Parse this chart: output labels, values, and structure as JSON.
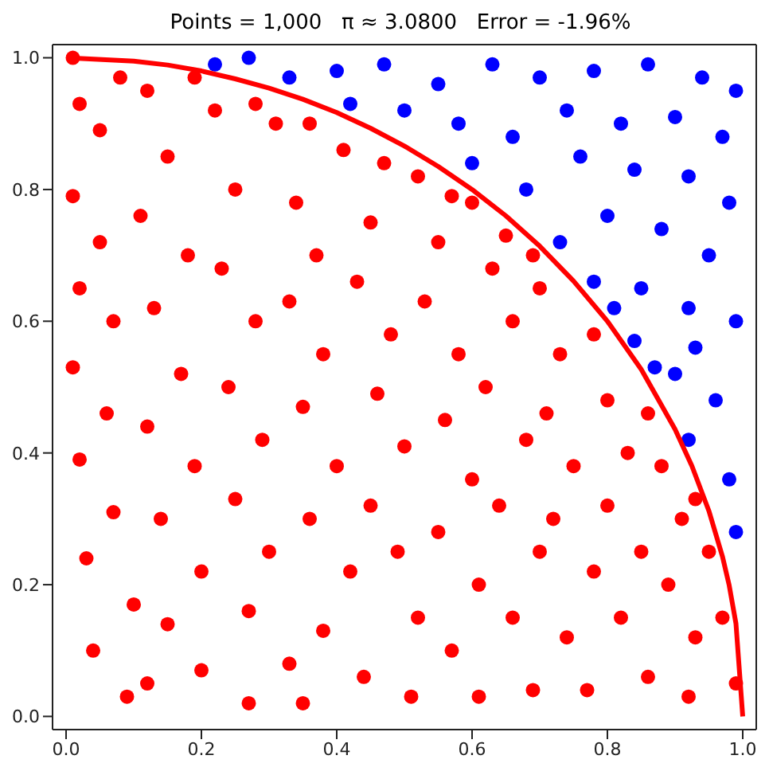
{
  "chart_data": {
    "type": "scatter",
    "title": "Points = 1,000   π ≈ 3.0800   Error = -1.96%",
    "xlim": [
      -0.02,
      1.02
    ],
    "ylim": [
      -0.02,
      1.02
    ],
    "xticks": [
      {
        "value": 0,
        "label": "0.0"
      },
      {
        "value": 0.2,
        "label": "0.2"
      },
      {
        "value": 0.4,
        "label": "0.4"
      },
      {
        "value": 0.6,
        "label": "0.6"
      },
      {
        "value": 0.8,
        "label": "0.8"
      },
      {
        "value": 1,
        "label": "1.0"
      }
    ],
    "yticks": [
      {
        "value": 0,
        "label": "0.0"
      },
      {
        "value": 0.2,
        "label": "0.2"
      },
      {
        "value": 0.4,
        "label": "0.4"
      },
      {
        "value": 0.6,
        "label": "0.6"
      },
      {
        "value": 0.8,
        "label": "0.8"
      },
      {
        "value": 1,
        "label": "1.0"
      }
    ],
    "marker": "circle",
    "series": [
      {
        "color": "#ff0000",
        "x": [
          0.01,
          0.02,
          0.05,
          0.01,
          0.05,
          0.02,
          0.07,
          0.01,
          0.06,
          0.02,
          0.07,
          0.03,
          0.1,
          0.04,
          0.09,
          0.12,
          0.15,
          0.11,
          0.18,
          0.13,
          0.17,
          0.12,
          0.19,
          0.14,
          0.2,
          0.15,
          0.12,
          0.2,
          0.22,
          0.25,
          0.23,
          0.28,
          0.24,
          0.29,
          0.25,
          0.3,
          0.27,
          0.33,
          0.27,
          0.35,
          0.31,
          0.34,
          0.37,
          0.33,
          0.38,
          0.35,
          0.4,
          0.36,
          0.42,
          0.38,
          0.44,
          0.41,
          0.45,
          0.43,
          0.48,
          0.46,
          0.5,
          0.45,
          0.49,
          0.52,
          0.51,
          0.52,
          0.55,
          0.53,
          0.58,
          0.56,
          0.6,
          0.55,
          0.61,
          0.57,
          0.61,
          0.6,
          0.63,
          0.66,
          0.62,
          0.68,
          0.64,
          0.7,
          0.66,
          0.69,
          0.7,
          0.73,
          0.71,
          0.75,
          0.72,
          0.78,
          0.74,
          0.77,
          0.78,
          0.8,
          0.83,
          0.8,
          0.85,
          0.82,
          0.86,
          0.86,
          0.88,
          0.91,
          0.89,
          0.93,
          0.92,
          0.93,
          0.95,
          0.97,
          0.99,
          0.08,
          0.19,
          0.28,
          0.36,
          0.47,
          0.57,
          0.65,
          0.69
        ],
        "values": [
          1.0,
          0.93,
          0.89,
          0.79,
          0.72,
          0.65,
          0.6,
          0.53,
          0.46,
          0.39,
          0.31,
          0.24,
          0.17,
          0.1,
          0.03,
          0.95,
          0.85,
          0.76,
          0.7,
          0.62,
          0.52,
          0.44,
          0.38,
          0.3,
          0.22,
          0.14,
          0.05,
          0.07,
          0.92,
          0.8,
          0.68,
          0.6,
          0.5,
          0.42,
          0.33,
          0.25,
          0.16,
          0.08,
          0.02,
          0.02,
          0.9,
          0.78,
          0.7,
          0.63,
          0.55,
          0.47,
          0.38,
          0.3,
          0.22,
          0.13,
          0.06,
          0.86,
          0.75,
          0.66,
          0.58,
          0.49,
          0.41,
          0.32,
          0.25,
          0.15,
          0.03,
          0.82,
          0.72,
          0.63,
          0.55,
          0.45,
          0.36,
          0.28,
          0.2,
          0.1,
          0.03,
          0.78,
          0.68,
          0.6,
          0.5,
          0.42,
          0.32,
          0.25,
          0.15,
          0.04,
          0.65,
          0.55,
          0.46,
          0.38,
          0.3,
          0.22,
          0.12,
          0.04,
          0.58,
          0.48,
          0.4,
          0.32,
          0.25,
          0.15,
          0.06,
          0.46,
          0.38,
          0.3,
          0.2,
          0.12,
          0.03,
          0.33,
          0.25,
          0.15,
          0.05,
          0.97,
          0.97,
          0.93,
          0.9,
          0.84,
          0.79,
          0.73,
          0.7
        ]
      },
      {
        "color": "#0000ff",
        "x": [
          0.22,
          0.27,
          0.33,
          0.4,
          0.47,
          0.55,
          0.63,
          0.7,
          0.78,
          0.86,
          0.94,
          0.99,
          0.42,
          0.5,
          0.58,
          0.66,
          0.74,
          0.82,
          0.9,
          0.97,
          0.6,
          0.68,
          0.76,
          0.84,
          0.92,
          0.98,
          0.73,
          0.8,
          0.88,
          0.95,
          0.78,
          0.85,
          0.92,
          0.99,
          0.84,
          0.9,
          0.96,
          0.92,
          0.98,
          0.99,
          0.87,
          0.81,
          0.93
        ],
        "values": [
          0.99,
          1.0,
          0.97,
          0.98,
          0.99,
          0.96,
          0.99,
          0.97,
          0.98,
          0.99,
          0.97,
          0.95,
          0.93,
          0.92,
          0.9,
          0.88,
          0.92,
          0.9,
          0.91,
          0.88,
          0.84,
          0.8,
          0.85,
          0.83,
          0.82,
          0.78,
          0.72,
          0.76,
          0.74,
          0.7,
          0.66,
          0.65,
          0.62,
          0.6,
          0.57,
          0.52,
          0.48,
          0.42,
          0.36,
          0.28,
          0.53,
          0.62,
          0.56
        ]
      },
      {
        "type": "line",
        "color": "#ff0000",
        "line_style": "solid",
        "marker": "none",
        "x": [
          0,
          0.1,
          0.15,
          0.2,
          0.25,
          0.3,
          0.35,
          0.4,
          0.45,
          0.5,
          0.55,
          0.6,
          0.65,
          0.7,
          0.75,
          0.8,
          0.85,
          0.9,
          0.925,
          0.95,
          0.97,
          0.98,
          0.99,
          1.0
        ],
        "values": [
          1.0,
          0.995,
          0.989,
          0.98,
          0.968,
          0.954,
          0.937,
          0.917,
          0.893,
          0.866,
          0.835,
          0.8,
          0.76,
          0.714,
          0.661,
          0.6,
          0.527,
          0.436,
          0.38,
          0.312,
          0.243,
          0.199,
          0.141,
          0.0
        ]
      }
    ]
  }
}
